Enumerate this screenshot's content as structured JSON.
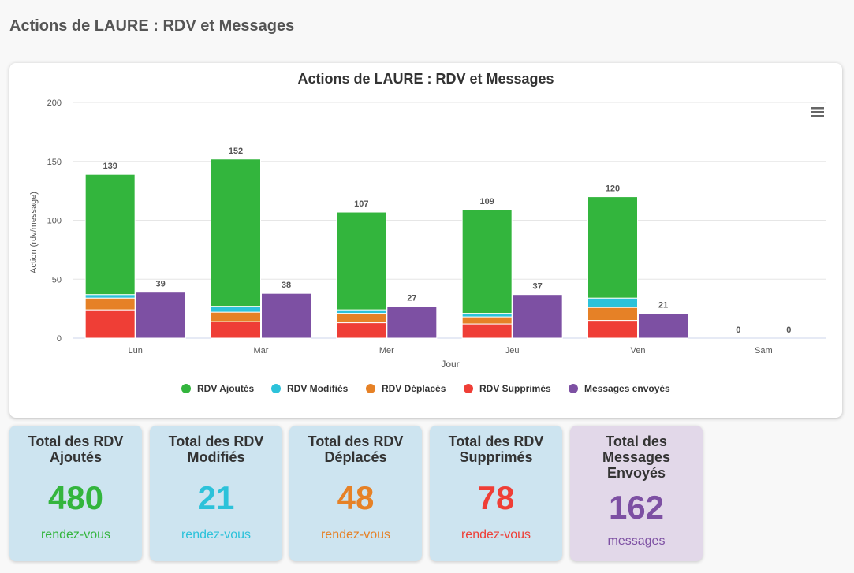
{
  "page": {
    "title": "Actions de LAURE : RDV et Messages"
  },
  "colors": {
    "ajoutes": "#33b53d",
    "modifies": "#2cc2da",
    "deplaces": "#e68126",
    "supprimes": "#ef3e36",
    "messages": "#7d50a3"
  },
  "chart_data": {
    "type": "bar",
    "title": "Actions de LAURE : RDV et Messages",
    "xlabel": "Jour",
    "ylabel": "Action (rdv/message)",
    "ylim": [
      0,
      200
    ],
    "yticks": [
      "0",
      "50",
      "100",
      "150",
      "200"
    ],
    "categories": [
      "Lun",
      "Mar",
      "Mer",
      "Jeu",
      "Ven",
      "Sam"
    ],
    "stacked_rdv": {
      "series": [
        {
          "name": "RDV Supprimés",
          "values": [
            24,
            14,
            13,
            12,
            15,
            0
          ]
        },
        {
          "name": "RDV Déplacés",
          "values": [
            10,
            8,
            8,
            6,
            11,
            0
          ]
        },
        {
          "name": "RDV Modifiés",
          "values": [
            3,
            5,
            3,
            3,
            8,
            0
          ]
        },
        {
          "name": "RDV Ajoutés",
          "values": [
            102,
            125,
            83,
            88,
            86,
            0
          ]
        }
      ],
      "totals": [
        139,
        152,
        107,
        109,
        120,
        0
      ]
    },
    "messages": {
      "name": "Messages envoyés",
      "values": [
        39,
        38,
        27,
        37,
        21,
        0
      ]
    },
    "legend": [
      "RDV Ajoutés",
      "RDV Modifiés",
      "RDV Déplacés",
      "RDV Supprimés",
      "Messages envoyés"
    ],
    "legend_position": "bottom-center",
    "grid": true
  },
  "stats": [
    {
      "title": "Total des RDV Ajoutés",
      "value": "480",
      "unit": "rendez-vous"
    },
    {
      "title": "Total des RDV Modifiés",
      "value": "21",
      "unit": "rendez-vous"
    },
    {
      "title": "Total des RDV Déplacés",
      "value": "48",
      "unit": "rendez-vous"
    },
    {
      "title": "Total des RDV Supprimés",
      "value": "78",
      "unit": "rendez-vous"
    },
    {
      "title": "Total des Messages Envoyés",
      "value": "162",
      "unit": "messages"
    }
  ]
}
